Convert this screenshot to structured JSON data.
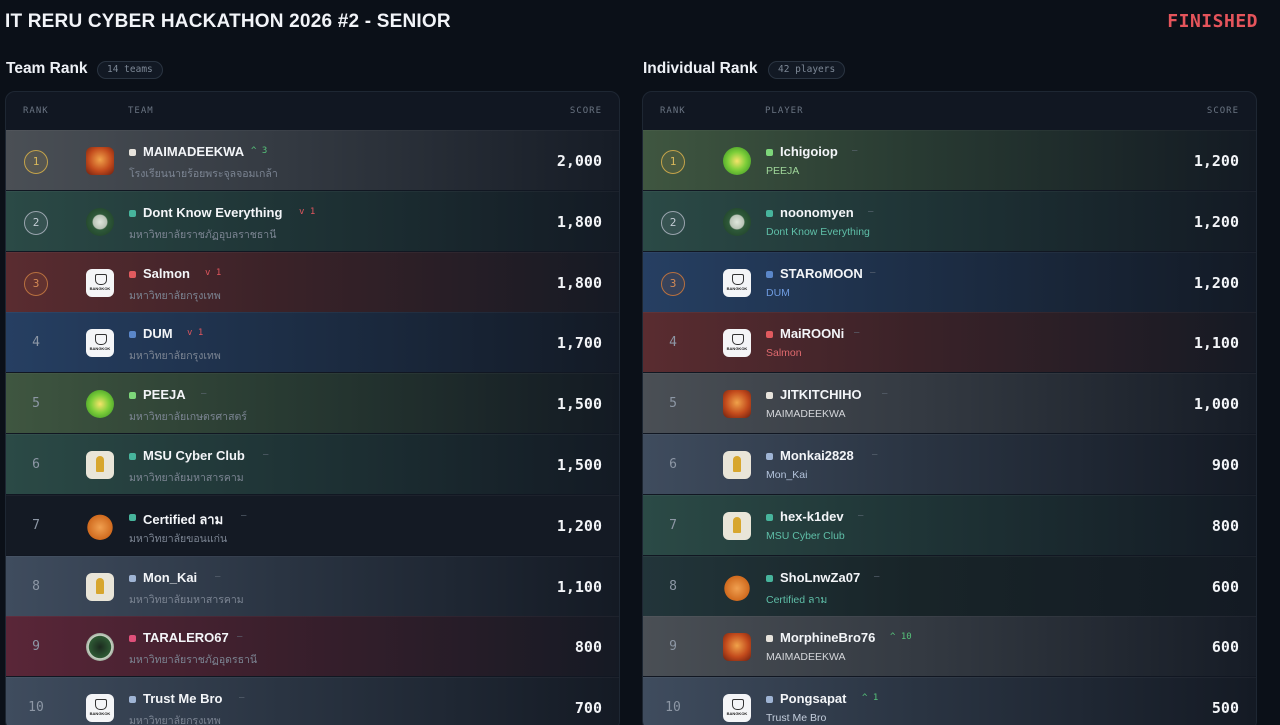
{
  "header": {
    "title": "IT RERU CYBER HACKATHON 2026 #2 - SENIOR",
    "status": "FINISHED"
  },
  "team_rank": {
    "title": "Team Rank",
    "count": "14 teams",
    "columns": {
      "rank": "RANK",
      "name": "TEAM",
      "score": "SCORE"
    },
    "rows": [
      {
        "rank": "1",
        "name": "MAIMADEEKWA",
        "delta": "^ 3",
        "sub": "โรงเรียนนายร้อยพระจุลจอมเกล้า",
        "score": "2,000"
      },
      {
        "rank": "2",
        "name": "Dont Know Everything",
        "delta": "v 1",
        "sub": "มหาวิทยาลัยราชภัฏอุบลราชธานี",
        "score": "1,800"
      },
      {
        "rank": "3",
        "name": "Salmon",
        "delta": "v 1",
        "sub": "มหาวิทยาลัยกรุงเทพ",
        "score": "1,800"
      },
      {
        "rank": "4",
        "name": "DUM",
        "delta": "v 1",
        "sub": "มหาวิทยาลัยกรุงเทพ",
        "score": "1,700"
      },
      {
        "rank": "5",
        "name": "PEEJA",
        "delta": "—",
        "sub": "มหาวิทยาลัยเกษตรศาสตร์",
        "score": "1,500"
      },
      {
        "rank": "6",
        "name": "MSU Cyber Club",
        "delta": "—",
        "sub": "มหาวิทยาลัยมหาสารคาม",
        "score": "1,500"
      },
      {
        "rank": "7",
        "name": "Certified ลาม",
        "delta": "—",
        "sub": "มหาวิทยาลัยขอนแก่น",
        "score": "1,200"
      },
      {
        "rank": "8",
        "name": "Mon_Kai",
        "delta": "—",
        "sub": "มหาวิทยาลัยมหาสารคาม",
        "score": "1,100"
      },
      {
        "rank": "9",
        "name": "TARALERO67",
        "delta": "—",
        "sub": "มหาวิทยาลัยราชภัฏอุดรธานี",
        "score": "800"
      },
      {
        "rank": "10",
        "name": "Trust Me Bro",
        "delta": "—",
        "sub": "มหาวิทยาลัยกรุงเทพ",
        "score": "700"
      }
    ]
  },
  "individual_rank": {
    "title": "Individual Rank",
    "count": "42 players",
    "columns": {
      "rank": "RANK",
      "name": "PLAYER",
      "score": "SCORE"
    },
    "rows": [
      {
        "rank": "1",
        "name": "Ichigoiop",
        "delta": "—",
        "sub": "PEEJA",
        "score": "1,200"
      },
      {
        "rank": "2",
        "name": "noonomyen",
        "delta": "—",
        "sub": "Dont Know Everything",
        "score": "1,200"
      },
      {
        "rank": "3",
        "name": "STARoMOON",
        "delta": "—",
        "sub": "DUM",
        "score": "1,200"
      },
      {
        "rank": "4",
        "name": "MaiROONi",
        "delta": "—",
        "sub": "Salmon",
        "score": "1,100"
      },
      {
        "rank": "5",
        "name": "JITKITCHIHO",
        "delta": "—",
        "sub": "MAIMADEEKWA",
        "score": "1,000"
      },
      {
        "rank": "6",
        "name": "Monkai2828",
        "delta": "—",
        "sub": "Mon_Kai",
        "score": "900"
      },
      {
        "rank": "7",
        "name": "hex-k1dev",
        "delta": "—",
        "sub": "MSU Cyber Club",
        "score": "800"
      },
      {
        "rank": "8",
        "name": "ShoLnwZa07",
        "delta": "—",
        "sub": "Certified ลาม",
        "score": "600"
      },
      {
        "rank": "9",
        "name": "MorphineBro76",
        "delta": "^ 10",
        "sub": "MAIMADEEKWA",
        "score": "600"
      },
      {
        "rank": "10",
        "name": "Pongsapat",
        "delta": "^ 1",
        "sub": "Trust Me Bro",
        "score": "500"
      }
    ]
  },
  "colors": {
    "status": "#e5545b",
    "up": "#56c27a",
    "down": "#e0555d",
    "team_gold": "#e7e3dc",
    "team_teal": "#47b49c",
    "team_red": "#e05a5e",
    "team_blue": "#5a86c8",
    "team_green": "#7dd67a",
    "team_slate": "#9fb4d4",
    "team_rose": "#e0507a"
  }
}
